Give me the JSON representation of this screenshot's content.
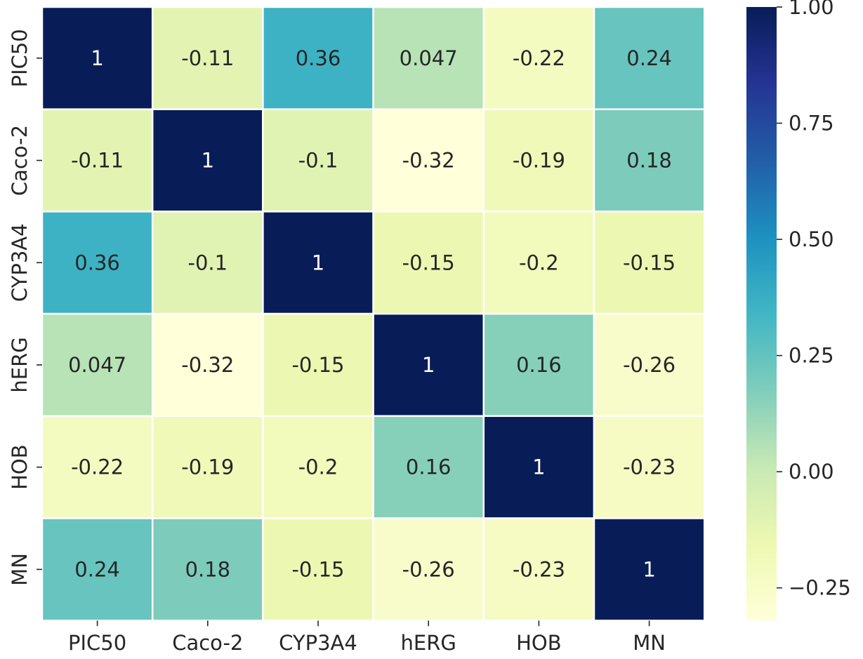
{
  "chart_data": {
    "type": "heatmap",
    "title": "",
    "xlabel": "",
    "ylabel": "",
    "rows": [
      "PIC50",
      "Caco-2",
      "CYP3A4",
      "hERG",
      "HOB",
      "MN"
    ],
    "columns": [
      "PIC50",
      "Caco-2",
      "CYP3A4",
      "hERG",
      "HOB",
      "MN"
    ],
    "values": [
      [
        1,
        -0.11,
        0.36,
        0.047,
        -0.22,
        0.24
      ],
      [
        -0.11,
        1,
        -0.1,
        -0.32,
        -0.19,
        0.18
      ],
      [
        0.36,
        -0.1,
        1,
        -0.15,
        -0.2,
        -0.15
      ],
      [
        0.047,
        -0.32,
        -0.15,
        1,
        0.16,
        -0.26
      ],
      [
        -0.22,
        -0.19,
        -0.2,
        0.16,
        1,
        -0.23
      ],
      [
        0.24,
        0.18,
        -0.15,
        -0.26,
        -0.23,
        1
      ]
    ],
    "annotations": [
      [
        "1",
        "-0.11",
        "0.36",
        "0.047",
        "-0.22",
        "0.24"
      ],
      [
        "-0.11",
        "1",
        "-0.1",
        "-0.32",
        "-0.19",
        "0.18"
      ],
      [
        "0.36",
        "-0.1",
        "1",
        "-0.15",
        "-0.2",
        "-0.15"
      ],
      [
        "0.047",
        "-0.32",
        "-0.15",
        "1",
        "0.16",
        "-0.26"
      ],
      [
        "-0.22",
        "-0.19",
        "-0.2",
        "0.16",
        "1",
        "-0.23"
      ],
      [
        "0.24",
        "0.18",
        "-0.15",
        "-0.26",
        "-0.23",
        "1"
      ]
    ],
    "colormap": "YlGnBu",
    "colormap_stops": [
      "#ffffd9",
      "#edf8b1",
      "#c7e9b4",
      "#7fcdbb",
      "#41b6c4",
      "#1d91c0",
      "#225ea8",
      "#253494",
      "#081d58"
    ],
    "vmin": -0.32,
    "vmax": 1,
    "grid_line_color": "#ffffff",
    "colorbar": {
      "placement": "right",
      "ticks": [
        1.0,
        0.75,
        0.5,
        0.25,
        0.0,
        -0.25
      ],
      "tick_labels": [
        "1.00",
        "0.75",
        "0.50",
        "0.25",
        "0.00",
        "−0.25"
      ]
    },
    "annotation_dark_color": "#262626",
    "annotation_light_color": "#ffffff"
  }
}
